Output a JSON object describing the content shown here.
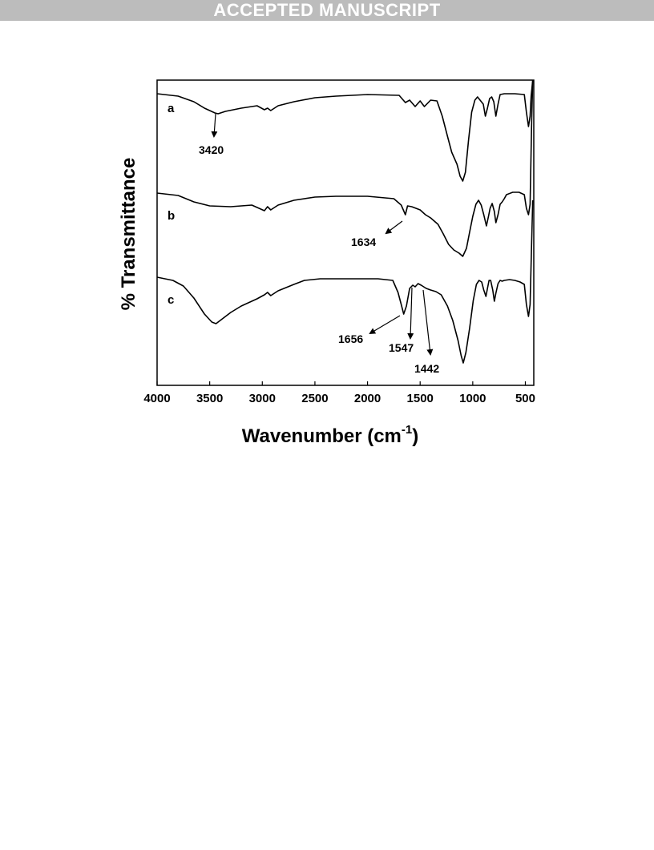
{
  "banner": "ACCEPTED MANUSCRIPT",
  "chart_data": {
    "type": "line",
    "xlabel": "Wavenumber (cm",
    "xlabel_sup": "-1",
    "xlabel_end": ")",
    "ylabel": "% Transmittance",
    "xlim": [
      4000,
      420
    ],
    "x_reversed": true,
    "x_ticks": [
      "4000",
      "3500",
      "3000",
      "2500",
      "2000",
      "1500",
      "1000",
      "500"
    ],
    "y_ticks_shown": false,
    "series": [
      {
        "name": "a",
        "points": [
          [
            4000,
            117
          ],
          [
            3800,
            120
          ],
          [
            3650,
            127
          ],
          [
            3550,
            135
          ],
          [
            3450,
            141
          ],
          [
            3420,
            142
          ],
          [
            3350,
            139
          ],
          [
            3200,
            135
          ],
          [
            3050,
            132
          ],
          [
            2980,
            137
          ],
          [
            2950,
            135
          ],
          [
            2920,
            138
          ],
          [
            2850,
            132
          ],
          [
            2700,
            127
          ],
          [
            2500,
            122
          ],
          [
            2300,
            120
          ],
          [
            2000,
            118
          ],
          [
            1700,
            119
          ],
          [
            1640,
            128
          ],
          [
            1600,
            125
          ],
          [
            1547,
            133
          ],
          [
            1500,
            126
          ],
          [
            1460,
            133
          ],
          [
            1400,
            125
          ],
          [
            1340,
            126
          ],
          [
            1290,
            145
          ],
          [
            1240,
            170
          ],
          [
            1200,
            190
          ],
          [
            1150,
            205
          ],
          [
            1120,
            220
          ],
          [
            1095,
            226
          ],
          [
            1070,
            215
          ],
          [
            1040,
            175
          ],
          [
            1010,
            140
          ],
          [
            980,
            125
          ],
          [
            955,
            121
          ],
          [
            930,
            125
          ],
          [
            900,
            130
          ],
          [
            880,
            145
          ],
          [
            860,
            135
          ],
          [
            840,
            123
          ],
          [
            820,
            121
          ],
          [
            800,
            127
          ],
          [
            780,
            145
          ],
          [
            760,
            130
          ],
          [
            740,
            118
          ],
          [
            700,
            117
          ],
          [
            600,
            117
          ],
          [
            510,
            118
          ],
          [
            490,
            140
          ],
          [
            470,
            158
          ],
          [
            455,
            145
          ],
          [
            445,
            120
          ],
          [
            430,
            100
          ]
        ]
      },
      {
        "name": "b",
        "points": [
          [
            4000,
            241
          ],
          [
            3800,
            244
          ],
          [
            3650,
            252
          ],
          [
            3500,
            257
          ],
          [
            3300,
            258
          ],
          [
            3100,
            256
          ],
          [
            2980,
            263
          ],
          [
            2950,
            258
          ],
          [
            2920,
            262
          ],
          [
            2850,
            256
          ],
          [
            2700,
            250
          ],
          [
            2500,
            246
          ],
          [
            2300,
            245
          ],
          [
            2000,
            245
          ],
          [
            1750,
            248
          ],
          [
            1680,
            256
          ],
          [
            1640,
            268
          ],
          [
            1620,
            257
          ],
          [
            1580,
            258
          ],
          [
            1500,
            262
          ],
          [
            1450,
            268
          ],
          [
            1400,
            272
          ],
          [
            1330,
            280
          ],
          [
            1280,
            292
          ],
          [
            1230,
            305
          ],
          [
            1180,
            312
          ],
          [
            1130,
            316
          ],
          [
            1095,
            320
          ],
          [
            1060,
            310
          ],
          [
            1030,
            290
          ],
          [
            1000,
            270
          ],
          [
            970,
            255
          ],
          [
            945,
            250
          ],
          [
            920,
            256
          ],
          [
            895,
            268
          ],
          [
            870,
            282
          ],
          [
            850,
            270
          ],
          [
            835,
            260
          ],
          [
            815,
            254
          ],
          [
            795,
            264
          ],
          [
            780,
            278
          ],
          [
            760,
            268
          ],
          [
            740,
            255
          ],
          [
            720,
            252
          ],
          [
            700,
            248
          ],
          [
            680,
            243
          ],
          [
            620,
            240
          ],
          [
            560,
            240
          ],
          [
            510,
            243
          ],
          [
            490,
            260
          ],
          [
            470,
            268
          ],
          [
            455,
            255
          ],
          [
            440,
            150
          ],
          [
            430,
            100
          ]
        ]
      },
      {
        "name": "c",
        "points": [
          [
            4000,
            346
          ],
          [
            3850,
            350
          ],
          [
            3750,
            357
          ],
          [
            3650,
            372
          ],
          [
            3550,
            392
          ],
          [
            3480,
            402
          ],
          [
            3440,
            404
          ],
          [
            3380,
            398
          ],
          [
            3300,
            390
          ],
          [
            3200,
            382
          ],
          [
            3050,
            373
          ],
          [
            2980,
            368
          ],
          [
            2950,
            365
          ],
          [
            2920,
            369
          ],
          [
            2850,
            363
          ],
          [
            2700,
            355
          ],
          [
            2600,
            350
          ],
          [
            2450,
            348
          ],
          [
            2200,
            348
          ],
          [
            1900,
            348
          ],
          [
            1760,
            350
          ],
          [
            1710,
            365
          ],
          [
            1680,
            380
          ],
          [
            1656,
            392
          ],
          [
            1630,
            382
          ],
          [
            1600,
            360
          ],
          [
            1570,
            356
          ],
          [
            1547,
            358
          ],
          [
            1520,
            354
          ],
          [
            1490,
            356
          ],
          [
            1442,
            360
          ],
          [
            1400,
            362
          ],
          [
            1350,
            364
          ],
          [
            1300,
            368
          ],
          [
            1240,
            382
          ],
          [
            1190,
            400
          ],
          [
            1140,
            425
          ],
          [
            1110,
            444
          ],
          [
            1090,
            453
          ],
          [
            1065,
            440
          ],
          [
            1030,
            410
          ],
          [
            995,
            375
          ],
          [
            965,
            355
          ],
          [
            940,
            350
          ],
          [
            915,
            352
          ],
          [
            895,
            362
          ],
          [
            875,
            370
          ],
          [
            860,
            360
          ],
          [
            845,
            350
          ],
          [
            830,
            350
          ],
          [
            810,
            362
          ],
          [
            795,
            376
          ],
          [
            780,
            366
          ],
          [
            760,
            354
          ],
          [
            740,
            350
          ],
          [
            720,
            351
          ],
          [
            700,
            350
          ],
          [
            650,
            349
          ],
          [
            600,
            350
          ],
          [
            550,
            352
          ],
          [
            510,
            355
          ],
          [
            490,
            380
          ],
          [
            470,
            395
          ],
          [
            455,
            380
          ],
          [
            440,
            300
          ],
          [
            430,
            250
          ]
        ]
      }
    ],
    "annotations": [
      {
        "text": "3420",
        "target_x": 3420
      },
      {
        "text": "1634",
        "target_x": 1634
      },
      {
        "text": "1656",
        "target_x": 1656
      },
      {
        "text": "1547",
        "target_x": 1547
      },
      {
        "text": "1442",
        "target_x": 1442
      }
    ],
    "grid": false,
    "legend": "none"
  }
}
